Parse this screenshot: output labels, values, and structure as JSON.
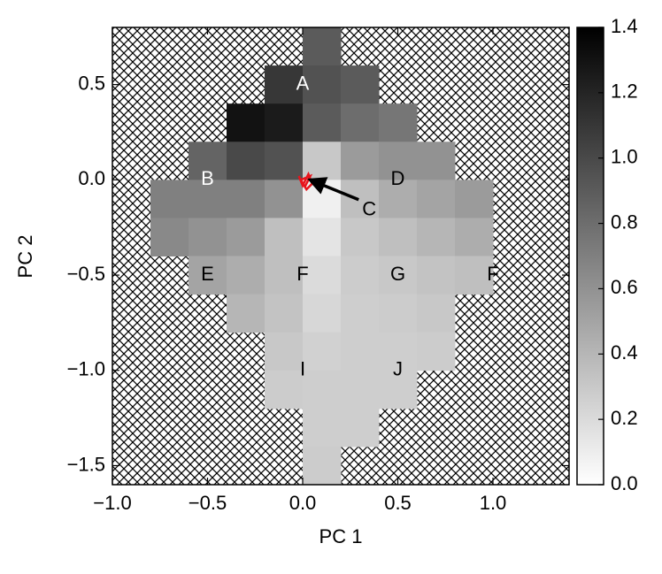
{
  "chart_data": {
    "type": "heatmap",
    "x_label": "PC 1",
    "y_label": "PC 2",
    "xlim": [
      -1.0,
      1.4
    ],
    "ylim": [
      -1.6,
      0.8
    ],
    "xticks": [
      {
        "value": -1.0,
        "label": "−1.0"
      },
      {
        "value": -0.5,
        "label": "−0.5"
      },
      {
        "value": 0.0,
        "label": "0.0"
      },
      0.5,
      {
        "value": 1.0,
        "label": "1.0"
      }
    ],
    "yticks": [
      0.5,
      {
        "value": 0.0,
        "label": "0.0"
      },
      {
        "value": -0.5,
        "label": "−0.5"
      },
      {
        "value": -1.0,
        "label": "−1.0"
      },
      {
        "value": -1.5,
        "label": "−1.5"
      }
    ],
    "xbins": [
      -0.8,
      -0.6,
      -0.4,
      -0.2,
      0.0,
      0.2,
      0.4,
      0.6,
      0.8,
      1.0,
      1.2
    ],
    "ybins": [
      0.8,
      0.6,
      0.4,
      0.2,
      0.0,
      -0.2,
      -0.4,
      -0.6,
      -0.8,
      -1.0,
      -1.2,
      -1.4,
      -1.6
    ],
    "z": [
      [
        null,
        null,
        null,
        null,
        0.9,
        null,
        null,
        null,
        null,
        null
      ],
      [
        null,
        null,
        null,
        1.1,
        0.95,
        0.9,
        null,
        null,
        null,
        null
      ],
      [
        null,
        null,
        1.3,
        1.25,
        0.9,
        0.8,
        0.75,
        null,
        null,
        null
      ],
      [
        null,
        0.85,
        1.0,
        0.95,
        0.3,
        0.55,
        0.6,
        0.6,
        null,
        null
      ],
      [
        0.7,
        0.7,
        0.7,
        0.6,
        0.08,
        0.35,
        0.45,
        0.5,
        0.55,
        null
      ],
      [
        0.65,
        0.6,
        0.55,
        0.35,
        0.15,
        0.3,
        0.35,
        0.4,
        0.45,
        null
      ],
      [
        null,
        0.5,
        0.45,
        0.35,
        0.2,
        0.28,
        0.3,
        0.33,
        0.35,
        null
      ],
      [
        null,
        null,
        0.4,
        0.33,
        0.22,
        0.27,
        0.28,
        0.3,
        null,
        null
      ],
      [
        null,
        null,
        null,
        0.3,
        0.25,
        0.27,
        0.27,
        0.28,
        null,
        null
      ],
      [
        null,
        null,
        null,
        0.28,
        0.27,
        0.27,
        0.27,
        null,
        null,
        null
      ],
      [
        null,
        null,
        null,
        null,
        0.27,
        0.27,
        null,
        null,
        null,
        null
      ],
      [
        null,
        null,
        null,
        null,
        0.28,
        null,
        null,
        null,
        null,
        null
      ]
    ],
    "clim": [
      0.0,
      1.4
    ],
    "cticks": [
      {
        "value": 0.0,
        "label": "0.0"
      },
      0.2,
      0.4,
      0.6,
      0.8,
      {
        "value": 1.0,
        "label": "1.0"
      },
      1.2,
      1.4
    ],
    "trajectory": {
      "color": "#e8141c",
      "x": [
        -0.02,
        0.0,
        0.03,
        0.05,
        0.02,
        -0.01,
        0.04,
        0.01
      ],
      "y": [
        0.02,
        -0.03,
        0.03,
        -0.02,
        -0.05,
        0.0,
        0.02,
        -0.04
      ]
    },
    "annotations": [
      {
        "text": "A",
        "x": 0.0,
        "y": 0.5,
        "color": "#ffffff"
      },
      {
        "text": "B",
        "x": -0.5,
        "y": 0.0,
        "color": "#ffffff"
      },
      {
        "text": "C",
        "x": 0.35,
        "y": -0.16,
        "color": "#000000",
        "arrow_x": 0.02,
        "arrow_y": 0.0
      },
      {
        "text": "D",
        "x": 0.5,
        "y": 0.0,
        "color": "#000000"
      },
      {
        "text": "E",
        "x": -0.5,
        "y": -0.5,
        "color": "#000000"
      },
      {
        "text": "F",
        "x": 0.0,
        "y": -0.5,
        "color": "#000000"
      },
      {
        "text": "G",
        "x": 0.5,
        "y": -0.5,
        "color": "#000000"
      },
      {
        "text": "F",
        "x": 1.0,
        "y": -0.5,
        "color": "#000000"
      },
      {
        "text": "I",
        "x": 0.0,
        "y": -1.0,
        "color": "#000000"
      },
      {
        "text": "J",
        "x": 0.5,
        "y": -1.0,
        "color": "#000000"
      }
    ]
  }
}
